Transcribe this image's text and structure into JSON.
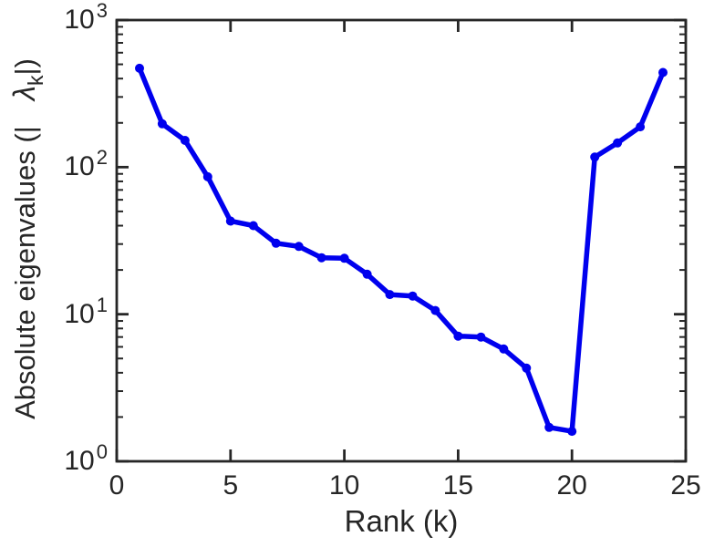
{
  "chart_data": {
    "type": "line",
    "yscale": "log",
    "title": "",
    "xlabel": "Rank (k)",
    "ylabel": "Absolute eigenvalues (|λk|)",
    "ylabel_parts": {
      "prefix": "Absolute eigenvalues (|",
      "symbol": "λ",
      "subscript": "k",
      "suffix": "|)"
    },
    "x": [
      1,
      2,
      3,
      4,
      5,
      6,
      7,
      8,
      9,
      10,
      11,
      12,
      13,
      14,
      15,
      16,
      17,
      18,
      19,
      20,
      21,
      22,
      23,
      24
    ],
    "y": [
      470,
      197,
      152,
      86,
      43,
      40,
      30.4,
      28.9,
      24.2,
      24.0,
      18.7,
      13.6,
      13.3,
      10.6,
      7.1,
      7.0,
      5.8,
      4.3,
      1.7,
      1.6,
      117,
      146,
      188,
      440
    ],
    "xlim": [
      0,
      25
    ],
    "ylim": [
      1,
      1000
    ],
    "x_ticks": [
      0,
      5,
      10,
      15,
      20,
      25
    ],
    "x_tick_labels": [
      "0",
      "5",
      "10",
      "15",
      "20",
      "25"
    ],
    "y_ticks": [
      {
        "value": 1,
        "base": "10",
        "exp": "0"
      },
      {
        "value": 10,
        "base": "10",
        "exp": "1"
      },
      {
        "value": 100,
        "base": "10",
        "exp": "2"
      },
      {
        "value": 1000,
        "base": "10",
        "exp": "3"
      }
    ],
    "grid": false,
    "legend": null,
    "box": true,
    "line_color": "#0000ee",
    "marker": "circle",
    "marker_color": "#0000ee",
    "axis_color": "#262626",
    "background": "#ffffff"
  }
}
